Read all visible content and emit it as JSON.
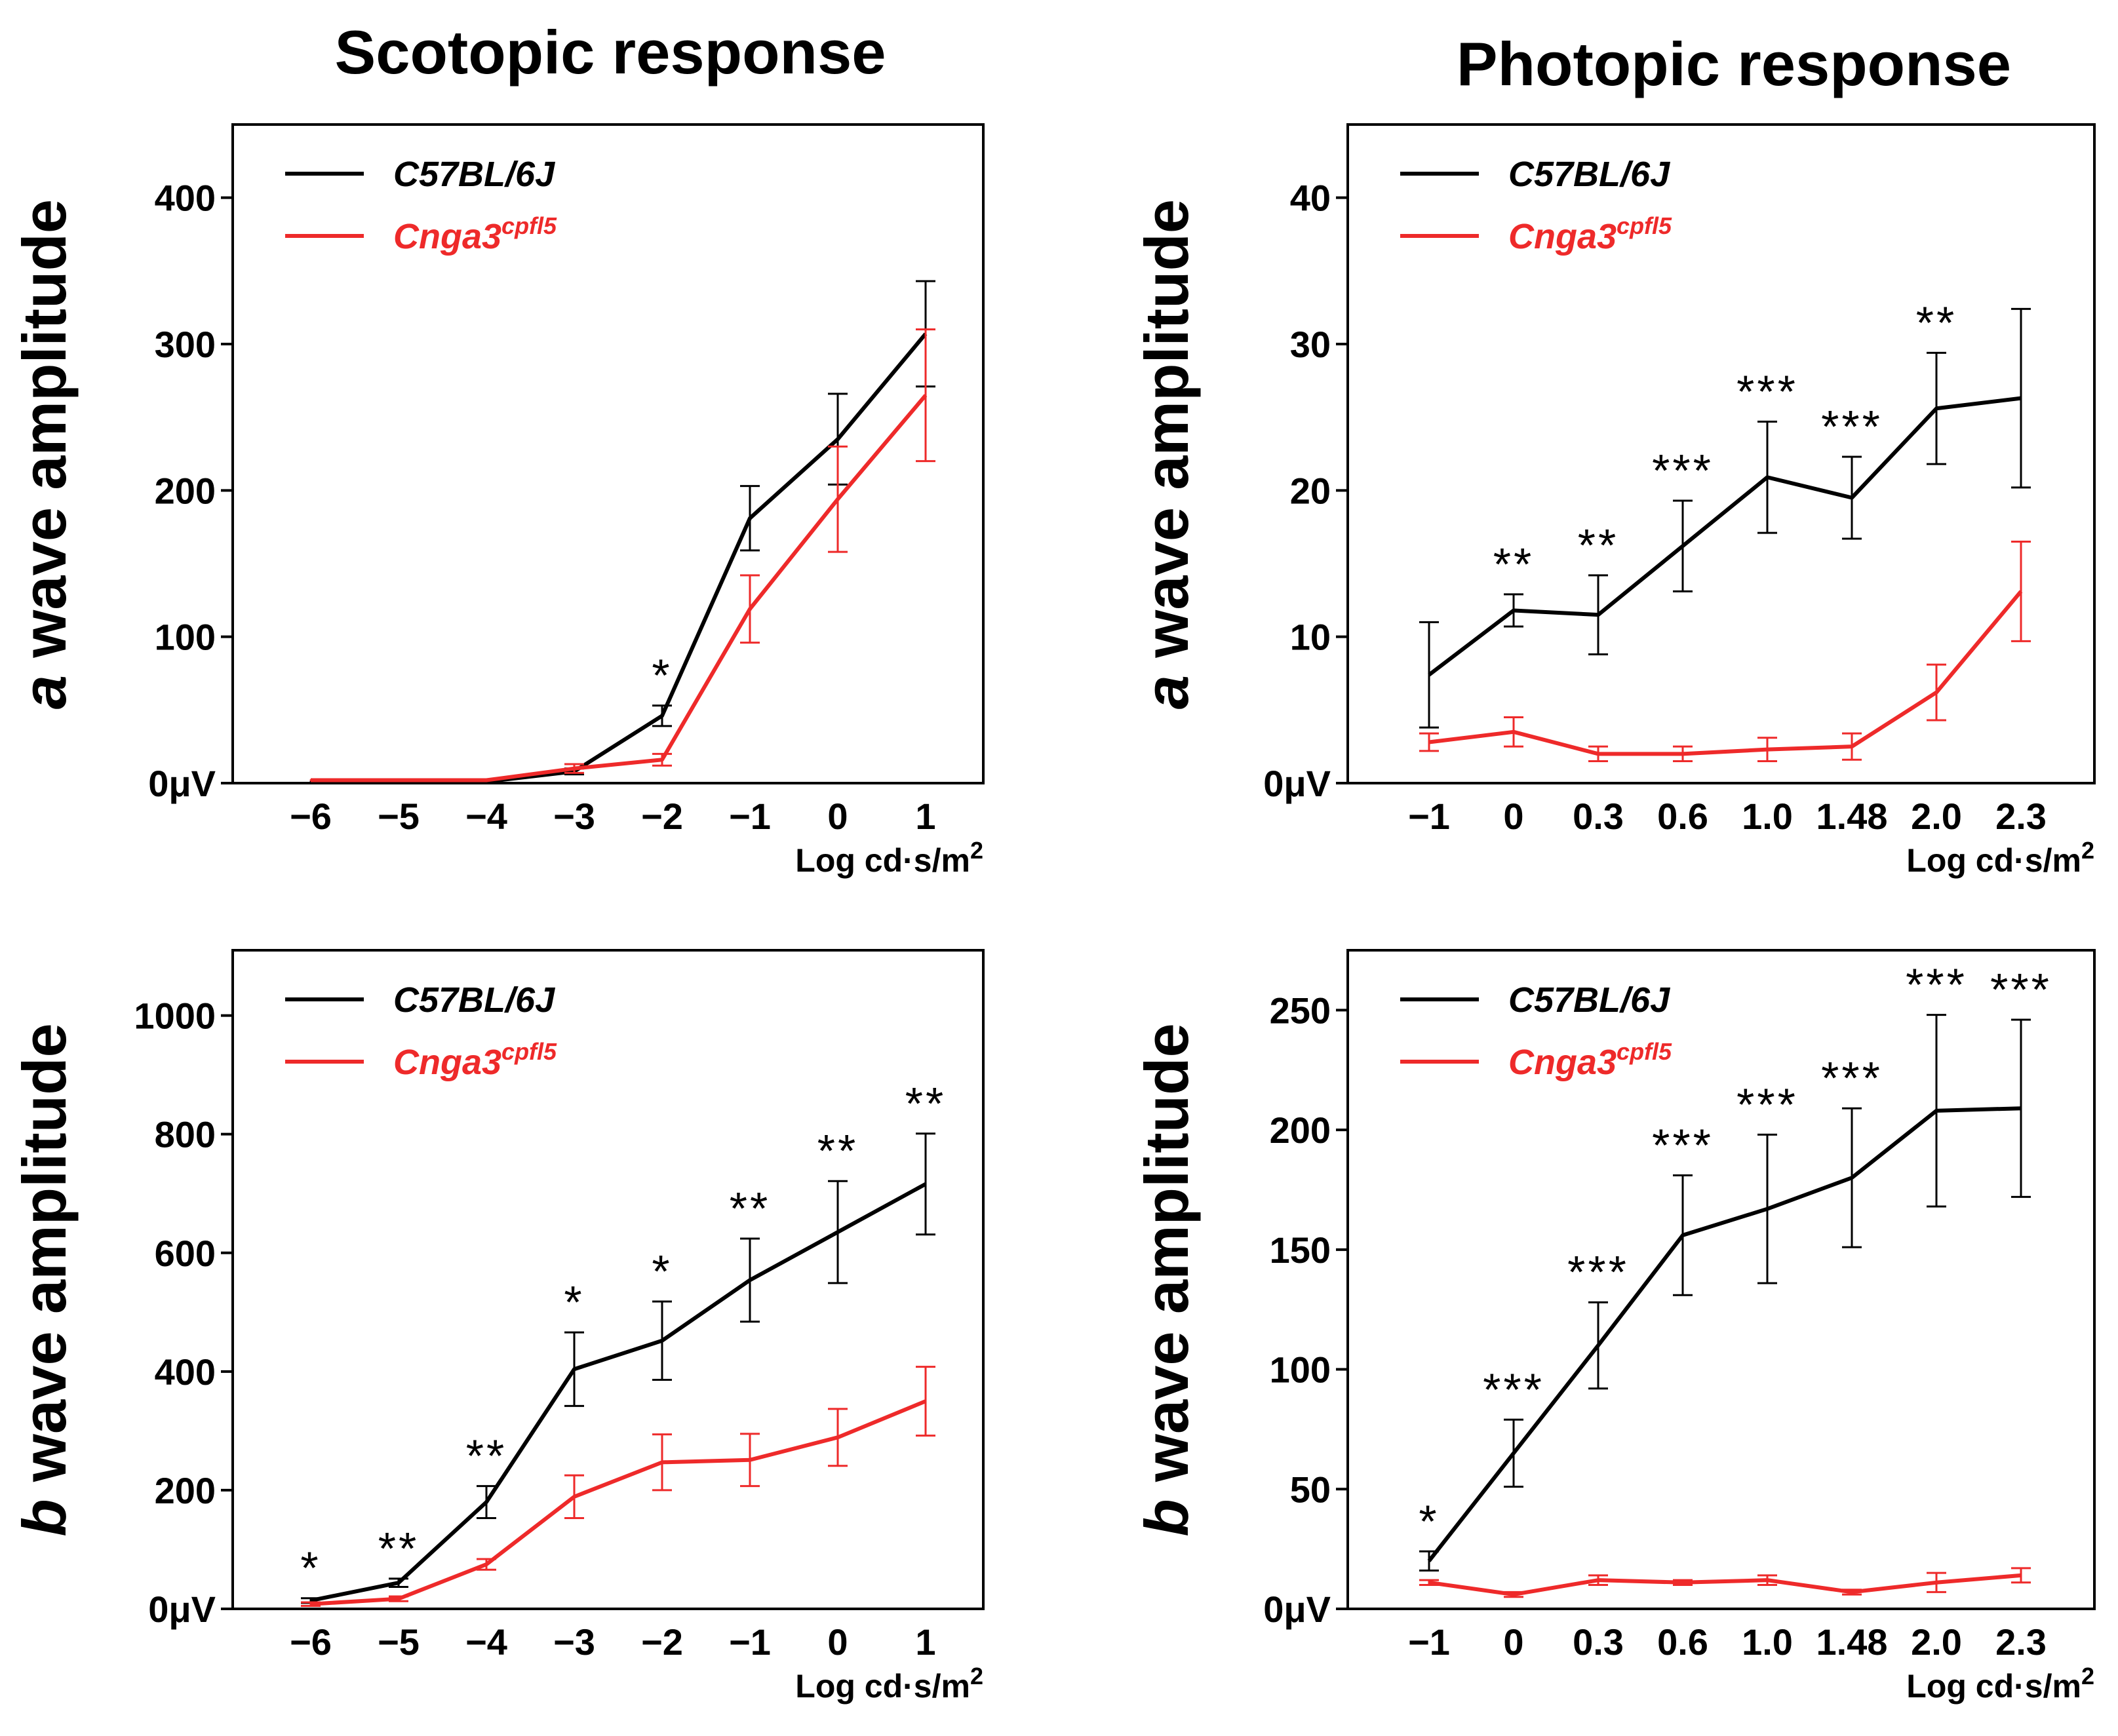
{
  "titles": {
    "left": "Scotopic response",
    "right": "Photopic response"
  },
  "colors": {
    "wild_type": "#000000",
    "mutant": "#ee2a2a"
  },
  "chart_data": [
    {
      "id": "scot-a",
      "type": "line",
      "ylabel_prefix": "a",
      "ylabel_rest": " wave amplitude",
      "xlabel": "Log cd·s/m",
      "xlabel_sup": "2",
      "ylim": [
        0,
        450
      ],
      "yticks": [
        0,
        100,
        200,
        300,
        400
      ],
      "ytick_labels": [
        "0μV",
        "100",
        "200",
        "300",
        "400"
      ],
      "categories": [
        "−6",
        "−5",
        "−4",
        "−3",
        "−2",
        "−1",
        "0",
        "1"
      ],
      "series": [
        {
          "name": "C57BL/6J",
          "color": "#000000",
          "values": [
            1,
            1,
            1,
            8,
            46,
            181,
            235,
            307
          ],
          "errors": [
            0,
            0,
            0,
            2,
            7,
            22,
            31,
            36
          ]
        },
        {
          "name": "Cnga3",
          "name_sup": "cpfl5",
          "color": "#ee2a2a",
          "values": [
            2,
            2,
            2,
            10,
            16,
            119,
            194,
            265
          ],
          "errors": [
            0,
            0,
            0,
            3,
            4,
            23,
            36,
            45
          ]
        }
      ],
      "stars": [
        "",
        "",
        "",
        "",
        "*",
        "",
        "",
        ""
      ]
    },
    {
      "id": "phot-a",
      "type": "line",
      "ylabel_prefix": "a",
      "ylabel_rest": " wave amplitude",
      "xlabel": "Log cd·s/m",
      "xlabel_sup": "2",
      "ylim": [
        0,
        45
      ],
      "yticks": [
        0,
        10,
        20,
        30,
        40
      ],
      "ytick_labels": [
        "0μV",
        "10",
        "20",
        "30",
        "40"
      ],
      "categories": [
        "−1",
        "0",
        "0.3",
        "0.6",
        "1.0",
        "1.48",
        "2.0",
        "2.3"
      ],
      "series": [
        {
          "name": "C57BL/6J",
          "color": "#000000",
          "values": [
            7.4,
            11.8,
            11.5,
            16.2,
            20.9,
            19.5,
            25.6,
            26.3
          ],
          "errors": [
            3.6,
            1.1,
            2.7,
            3.1,
            3.8,
            2.8,
            3.8,
            6.1
          ]
        },
        {
          "name": "Cnga3",
          "name_sup": "cpfl5",
          "color": "#ee2a2a",
          "values": [
            2.8,
            3.5,
            2.0,
            2.0,
            2.3,
            2.5,
            6.2,
            13.1
          ],
          "errors": [
            0.6,
            1.0,
            0.5,
            0.5,
            0.8,
            0.9,
            1.9,
            3.4
          ]
        }
      ],
      "stars": [
        "",
        "**",
        "**",
        "***",
        "***",
        "***",
        "**",
        ""
      ]
    },
    {
      "id": "scot-b",
      "type": "line",
      "ylabel_prefix": "b",
      "ylabel_rest": " wave amplitude",
      "xlabel": "Log cd·s/m",
      "xlabel_sup": "2",
      "ylim": [
        0,
        1110
      ],
      "yticks": [
        0,
        200,
        400,
        600,
        800,
        1000
      ],
      "ytick_labels": [
        "0μV",
        "200",
        "400",
        "600",
        "800",
        "1000"
      ],
      "categories": [
        "−6",
        "−5",
        "−4",
        "−3",
        "−2",
        "−1",
        "0",
        "1"
      ],
      "series": [
        {
          "name": "C57BL/6J",
          "color": "#000000",
          "values": [
            14,
            44,
            180,
            404,
            452,
            554,
            635,
            716
          ],
          "errors": [
            4,
            7,
            27,
            62,
            66,
            70,
            86,
            85
          ]
        },
        {
          "name": "Cnga3",
          "name_sup": "cpfl5",
          "color": "#ee2a2a",
          "values": [
            8,
            17,
            75,
            189,
            247,
            251,
            289,
            350
          ],
          "errors": [
            3,
            4,
            9,
            36,
            47,
            44,
            48,
            58
          ]
        }
      ],
      "stars": [
        "*",
        "**",
        "**",
        "*",
        "*",
        "**",
        "**",
        "**"
      ]
    },
    {
      "id": "phot-b",
      "type": "line",
      "ylabel_prefix": "b",
      "ylabel_rest": " wave amplitude",
      "xlabel": "Log cd·s/m",
      "xlabel_sup": "2",
      "ylim": [
        0,
        275
      ],
      "yticks": [
        0,
        50,
        100,
        150,
        200,
        250
      ],
      "ytick_labels": [
        "0μV",
        "50",
        "100",
        "150",
        "200",
        "250"
      ],
      "categories": [
        "−1",
        "0",
        "0.3",
        "0.6",
        "1.0",
        "1.48",
        "2.0",
        "2.3"
      ],
      "series": [
        {
          "name": "C57BL/6J",
          "color": "#000000",
          "values": [
            20,
            65,
            110,
            156,
            167,
            180,
            208,
            209
          ],
          "errors": [
            4,
            14,
            18,
            25,
            31,
            29,
            40,
            37
          ]
        },
        {
          "name": "Cnga3",
          "name_sup": "cpfl5",
          "color": "#ee2a2a",
          "values": [
            11,
            6,
            12,
            11,
            12,
            7,
            11,
            14
          ],
          "errors": [
            1,
            1,
            2,
            1,
            2,
            1,
            4,
            3
          ]
        }
      ],
      "stars": [
        "*",
        "***",
        "***",
        "***",
        "***",
        "***",
        "***",
        "***"
      ]
    }
  ]
}
